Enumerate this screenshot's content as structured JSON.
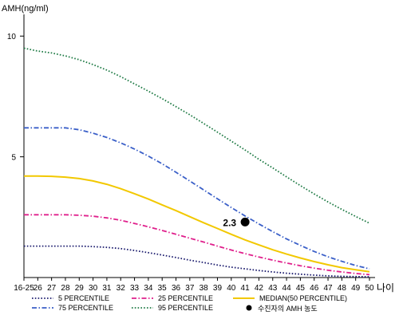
{
  "chart_data": {
    "type": "line",
    "ylabel": "AMH(ng/ml)",
    "xlabel": "나이",
    "x_categories": [
      "16-25",
      "26",
      "27",
      "28",
      "29",
      "30",
      "31",
      "32",
      "33",
      "34",
      "35",
      "36",
      "37",
      "38",
      "39",
      "40",
      "41",
      "42",
      "43",
      "44",
      "45",
      "46",
      "47",
      "48",
      "49",
      "50"
    ],
    "yticks": [
      5,
      10
    ],
    "ylim": [
      0,
      10.9
    ],
    "grid": false,
    "legend_position": "bottom",
    "series": [
      {
        "name": "5 PERCENTILE",
        "color": "#1c1c6e",
        "style": "dotted",
        "values": [
          1.3,
          1.3,
          1.3,
          1.3,
          1.3,
          1.28,
          1.25,
          1.2,
          1.12,
          1.03,
          0.93,
          0.83,
          0.72,
          0.62,
          0.52,
          0.43,
          0.36,
          0.29,
          0.23,
          0.18,
          0.14,
          0.1,
          0.07,
          0.05,
          0.04,
          0.03
        ]
      },
      {
        "name": "25 PERCENTILE",
        "color": "#e0208c",
        "style": "dashdot",
        "values": [
          2.6,
          2.6,
          2.6,
          2.6,
          2.58,
          2.54,
          2.47,
          2.37,
          2.24,
          2.1,
          1.95,
          1.79,
          1.63,
          1.47,
          1.3,
          1.14,
          0.99,
          0.85,
          0.72,
          0.6,
          0.49,
          0.39,
          0.3,
          0.23,
          0.17,
          0.12
        ]
      },
      {
        "name": "MEDIAN(50 PERCENTILE)",
        "color": "#f2c800",
        "style": "solid",
        "values": [
          4.2,
          4.2,
          4.19,
          4.16,
          4.1,
          4.0,
          3.86,
          3.68,
          3.47,
          3.25,
          3.01,
          2.77,
          2.52,
          2.27,
          2.03,
          1.79,
          1.56,
          1.35,
          1.15,
          0.97,
          0.81,
          0.66,
          0.53,
          0.41,
          0.32,
          0.24
        ]
      },
      {
        "name": "75 PERCENTILE",
        "color": "#3a5fc8",
        "style": "dashdot",
        "values": [
          6.2,
          6.2,
          6.2,
          6.2,
          6.12,
          5.98,
          5.8,
          5.58,
          5.32,
          5.03,
          4.71,
          4.36,
          4.0,
          3.63,
          3.26,
          2.9,
          2.55,
          2.22,
          1.9,
          1.6,
          1.33,
          1.08,
          0.86,
          0.67,
          0.5,
          0.36
        ]
      },
      {
        "name": "95 PERCENTILE",
        "color": "#1e7a44",
        "style": "dotted",
        "values": [
          9.5,
          9.38,
          9.3,
          9.18,
          9.02,
          8.82,
          8.59,
          8.32,
          8.02,
          7.72,
          7.41,
          7.08,
          6.74,
          6.38,
          6.02,
          5.65,
          5.28,
          4.9,
          4.54,
          4.17,
          3.81,
          3.46,
          3.13,
          2.82,
          2.53,
          2.25
        ]
      }
    ],
    "marker": {
      "name": "수진자의 AMH 농도",
      "x": "41",
      "y": 2.3,
      "label": "2.3",
      "color": "#000000"
    }
  }
}
